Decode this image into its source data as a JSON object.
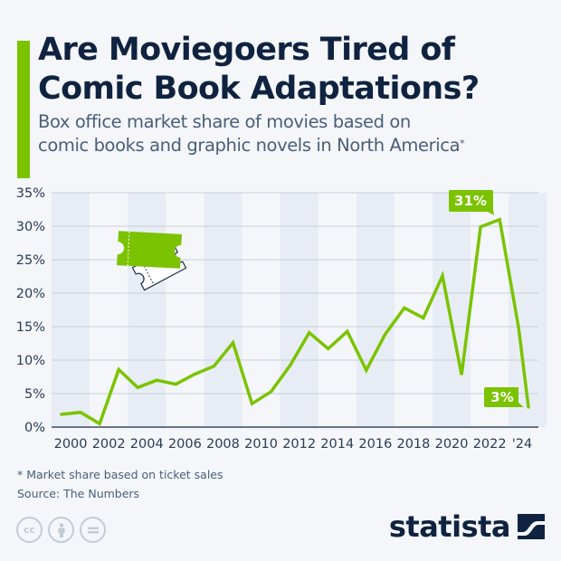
{
  "header": {
    "title_line1": "Are Moviegoers Tired of",
    "title_line2": "Comic Book Adaptations?",
    "subtitle_line1": "Box office market share of movies based on",
    "subtitle_line2": "comic books and graphic novels in North America",
    "subtitle_mark": "*"
  },
  "colors": {
    "accent": "#7bc300",
    "title": "#0f2340",
    "text": "#4a5e78",
    "background": "#f4f6fa",
    "band": "#e8edf5",
    "grid": "#c9d0da"
  },
  "annotations": {
    "peak_label": "31%",
    "last_label": "3%"
  },
  "footer": {
    "note": "* Market share based on ticket sales",
    "source": "Source: The Numbers",
    "license_icons": [
      "cc-icon",
      "attribution-icon",
      "no-derivatives-icon"
    ],
    "logo": "statista"
  },
  "chart_data": {
    "type": "line",
    "title": "Are Moviegoers Tired of Comic Book Adaptations?",
    "subtitle": "Box office market share of movies based on comic books and graphic novels in North America*",
    "xlabel": "",
    "ylabel": "",
    "x": [
      2000,
      2001,
      2002,
      2003,
      2004,
      2005,
      2006,
      2007,
      2008,
      2009,
      2010,
      2011,
      2012,
      2013,
      2014,
      2015,
      2016,
      2017,
      2018,
      2019,
      2020,
      2021,
      2022,
      2023,
      2024
    ],
    "series": [
      {
        "name": "Market share (%)",
        "values": [
          1.9,
          2.2,
          0.5,
          8.6,
          5.9,
          7.0,
          6.4,
          7.9,
          9.1,
          12.6,
          3.5,
          5.3,
          9.2,
          14.1,
          11.7,
          14.3,
          8.5,
          13.9,
          17.8,
          16.3,
          22.6,
          7.8,
          29.9,
          31.0,
          14.8
        ]
      }
    ],
    "final_point": {
      "x": 2024.5,
      "value": 3.0
    },
    "x_tick_labels": [
      "2000",
      "2002",
      "2004",
      "2006",
      "2008",
      "2010",
      "2012",
      "2014",
      "2016",
      "2018",
      "2020",
      "2022",
      "'24"
    ],
    "y_tick_labels": [
      "0%",
      "5%",
      "10%",
      "15%",
      "20%",
      "25%",
      "30%",
      "35%"
    ],
    "ylim": [
      0,
      35
    ],
    "grid": true,
    "annotations": [
      {
        "label": "31%",
        "x": 2023,
        "value": 31
      },
      {
        "label": "3%",
        "x": 2024,
        "value": 3
      }
    ],
    "legend": "none"
  }
}
